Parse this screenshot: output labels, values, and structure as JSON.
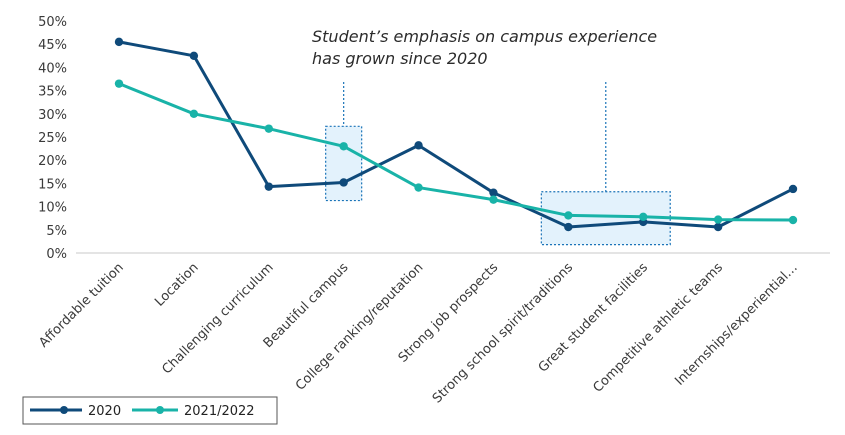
{
  "chart_data": {
    "type": "line",
    "categories": [
      "Affordable tuition",
      "Location",
      "Challenging curriculum",
      "Beautiful campus",
      "College ranking/reputation",
      "Strong job prospects",
      "Strong school spirit/traditions",
      "Great student facilities",
      "Competitive athletic teams",
      "Internships/experiential…"
    ],
    "series": [
      {
        "name": "2020",
        "color": "#0f4a7a",
        "values": [
          45.5,
          42.5,
          14.3,
          15.2,
          23.2,
          13.0,
          5.6,
          6.7,
          5.6,
          13.8
        ]
      },
      {
        "name": "2021/2022",
        "color": "#19b3a8",
        "values": [
          36.5,
          30.0,
          26.8,
          23.0,
          14.1,
          11.5,
          8.1,
          7.8,
          7.2,
          7.1
        ]
      }
    ],
    "y_ticks": [
      "0%",
      "5%",
      "10%",
      "15%",
      "20%",
      "25%",
      "30%",
      "35%",
      "40%",
      "45%",
      "50%"
    ],
    "ylim": [
      0,
      50
    ],
    "y_unit": "%",
    "grid": false,
    "legend_position": "bottom-left",
    "annotation": {
      "line1": "Student’s emphasis on campus experience",
      "line2": "has grown since 2020"
    },
    "highlight_color": "#1a73b8"
  }
}
